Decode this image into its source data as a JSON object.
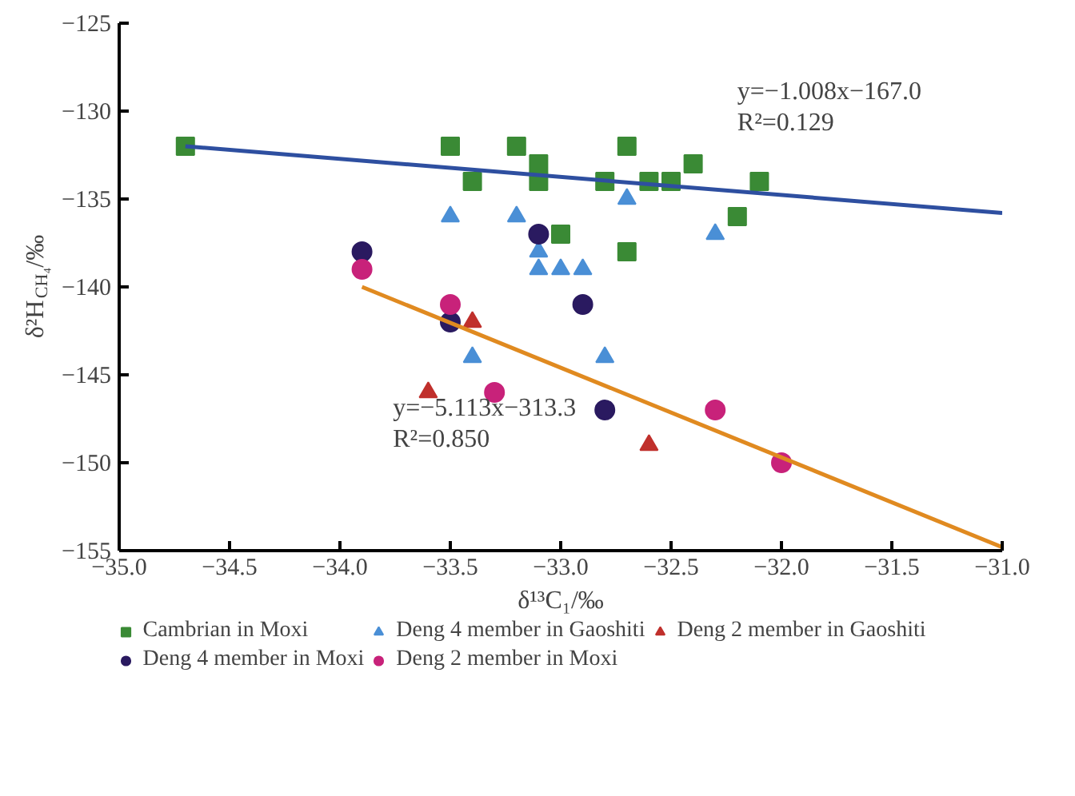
{
  "chart_data": {
    "type": "scatter",
    "xlabel": "δ¹³C₁/‰",
    "ylabel": "δ²H$_{CH₄}$/‰",
    "xlim": [
      -35,
      -31
    ],
    "ylim": [
      -155,
      -125
    ],
    "xticks": [
      {
        "value": -35,
        "label": "−35.0"
      },
      {
        "value": -34.5,
        "label": "−34.5"
      },
      {
        "value": -34,
        "label": "−34.0"
      },
      {
        "value": -33.5,
        "label": "−33.5"
      },
      {
        "value": -33,
        "label": "−33.0"
      },
      {
        "value": -32.5,
        "label": "−32.5"
      },
      {
        "value": -32,
        "label": "−32.0"
      },
      {
        "value": -31.5,
        "label": "−31.5"
      },
      {
        "value": -31,
        "label": "−31.0"
      }
    ],
    "yticks": [
      {
        "value": -155,
        "label": "−155"
      },
      {
        "value": -150,
        "label": "−150"
      },
      {
        "value": -145,
        "label": "−145"
      },
      {
        "value": -140,
        "label": "−140"
      },
      {
        "value": -135,
        "label": "−135"
      },
      {
        "value": -130,
        "label": "−130"
      },
      {
        "value": -125,
        "label": "−125"
      }
    ],
    "grid": false,
    "legend": "bottom",
    "series": [
      {
        "name": "Cambrian in Moxi",
        "color": "#3a8a35",
        "marker": "square",
        "x": [
          -34.7,
          -33.5,
          -33.4,
          -33.2,
          -33.1,
          -33.1,
          -33.0,
          -32.8,
          -32.7,
          -32.7,
          -32.6,
          -32.5,
          -32.4,
          -32.2,
          -32.1
        ],
        "values": [
          -132,
          -132,
          -134,
          -132,
          -133,
          -134,
          -137,
          -134,
          -132,
          -138,
          -134,
          -134,
          -133,
          -136,
          -134
        ]
      },
      {
        "name": "Deng 4 member in Gaoshiti",
        "color": "#4a8fd6",
        "marker": "triangle",
        "x": [
          -33.5,
          -33.2,
          -33.1,
          -33.1,
          -33.0,
          -32.9,
          -32.7,
          -32.3,
          -33.4,
          -32.8
        ],
        "values": [
          -136,
          -136,
          -138,
          -139,
          -139,
          -139,
          -135,
          -137,
          -144,
          -144
        ]
      },
      {
        "name": "Deng 2 member in Gaoshiti",
        "color": "#c0302c",
        "marker": "triangle",
        "x": [
          -33.4,
          -33.6,
          -32.6
        ],
        "values": [
          -142,
          -146,
          -149
        ]
      },
      {
        "name": "Deng 4 member in Moxi",
        "color": "#2a1a60",
        "marker": "circle",
        "x": [
          -33.9,
          -33.1,
          -32.9,
          -33.5,
          -32.8
        ],
        "values": [
          -138,
          -137,
          -141,
          -142,
          -147
        ]
      },
      {
        "name": "Deng 2 member in Moxi",
        "color": "#c8227a",
        "marker": "circle",
        "x": [
          -33.9,
          -33.5,
          -33.3,
          -32.3,
          -32.0
        ],
        "values": [
          -139,
          -141,
          -146,
          -147,
          -150
        ]
      },
      {
        "type": "line",
        "color": "#2e4fa0",
        "line_style": "solid",
        "x": [
          -34.7,
          -31.0
        ],
        "values": [
          -132.0,
          -135.8
        ]
      },
      {
        "type": "line",
        "color": "#e08a20",
        "line_style": "solid",
        "x": [
          -33.9,
          -31.0
        ],
        "values": [
          -140.0,
          -154.8
        ]
      }
    ],
    "annotations": [
      "y=−1.008x−167.0",
      "R²=0.129",
      "y=−5.113x−313.3",
      "R²=0.850"
    ]
  }
}
